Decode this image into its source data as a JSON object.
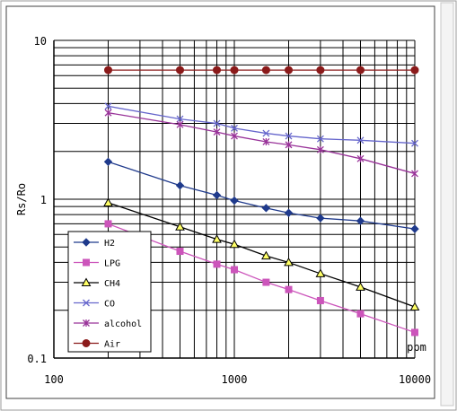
{
  "chart_data": {
    "type": "line",
    "xscale": "log",
    "yscale": "log",
    "xlim": [
      100,
      10000
    ],
    "ylim": [
      0.1,
      10
    ],
    "xlabel": "ppm",
    "ylabel": "Rs/Ro",
    "grid": true,
    "legend": "bottom-left",
    "xticks": [
      {
        "value": 100,
        "label": "100"
      },
      {
        "value": 1000,
        "label": "1000"
      },
      {
        "value": 10000,
        "label": "10000"
      }
    ],
    "yticks": [
      {
        "value": 0.1,
        "label": "0.1"
      },
      {
        "value": 1,
        "label": "1"
      },
      {
        "value": 10,
        "label": "10"
      }
    ],
    "xgrid_lines": [
      200,
      300,
      400,
      500,
      600,
      700,
      800,
      900,
      1000,
      2000,
      3000,
      4000,
      5000,
      6000,
      7000,
      8000,
      9000
    ],
    "ygrid_lines": [
      0.2,
      0.3,
      0.4,
      0.5,
      0.6,
      0.7,
      0.8,
      0.9,
      1,
      2,
      3,
      4,
      5,
      6,
      7,
      8,
      9
    ],
    "series": [
      {
        "name": "H2",
        "color": "#1f3a8c",
        "marker": "diamond",
        "x": [
          200,
          500,
          800,
          1000,
          1500,
          2000,
          3000,
          5000,
          10000
        ],
        "y": [
          1.72,
          1.22,
          1.06,
          0.98,
          0.88,
          0.82,
          0.76,
          0.73,
          0.65
        ]
      },
      {
        "name": "LPG",
        "color": "#cc55bb",
        "marker": "square",
        "x": [
          200,
          500,
          800,
          1000,
          1500,
          2000,
          3000,
          5000,
          10000
        ],
        "y": [
          0.7,
          0.47,
          0.39,
          0.36,
          0.3,
          0.27,
          0.23,
          0.19,
          0.145
        ]
      },
      {
        "name": "CH4",
        "color": "#000000",
        "marker": "triangle",
        "fill": "#ffff66",
        "x": [
          200,
          500,
          800,
          1000,
          1500,
          2000,
          3000,
          5000,
          10000
        ],
        "y": [
          0.95,
          0.67,
          0.56,
          0.52,
          0.44,
          0.4,
          0.34,
          0.28,
          0.21
        ]
      },
      {
        "name": "CO",
        "color": "#6666cc",
        "marker": "x",
        "x": [
          200,
          500,
          800,
          1000,
          1500,
          2000,
          3000,
          5000,
          10000
        ],
        "y": [
          3.85,
          3.2,
          3.0,
          2.8,
          2.6,
          2.5,
          2.4,
          2.35,
          2.25
        ]
      },
      {
        "name": "alcohol",
        "color": "#993399",
        "marker": "star",
        "x": [
          200,
          500,
          800,
          1000,
          1500,
          2000,
          3000,
          5000,
          10000
        ],
        "y": [
          3.5,
          2.95,
          2.65,
          2.5,
          2.3,
          2.2,
          2.05,
          1.8,
          1.45
        ]
      },
      {
        "name": "Air",
        "color": "#8b1a1a",
        "marker": "circle",
        "x": [
          200,
          500,
          800,
          1000,
          1500,
          2000,
          3000,
          5000,
          10000
        ],
        "y": [
          6.5,
          6.5,
          6.5,
          6.5,
          6.5,
          6.5,
          6.5,
          6.5,
          6.5
        ]
      }
    ]
  }
}
